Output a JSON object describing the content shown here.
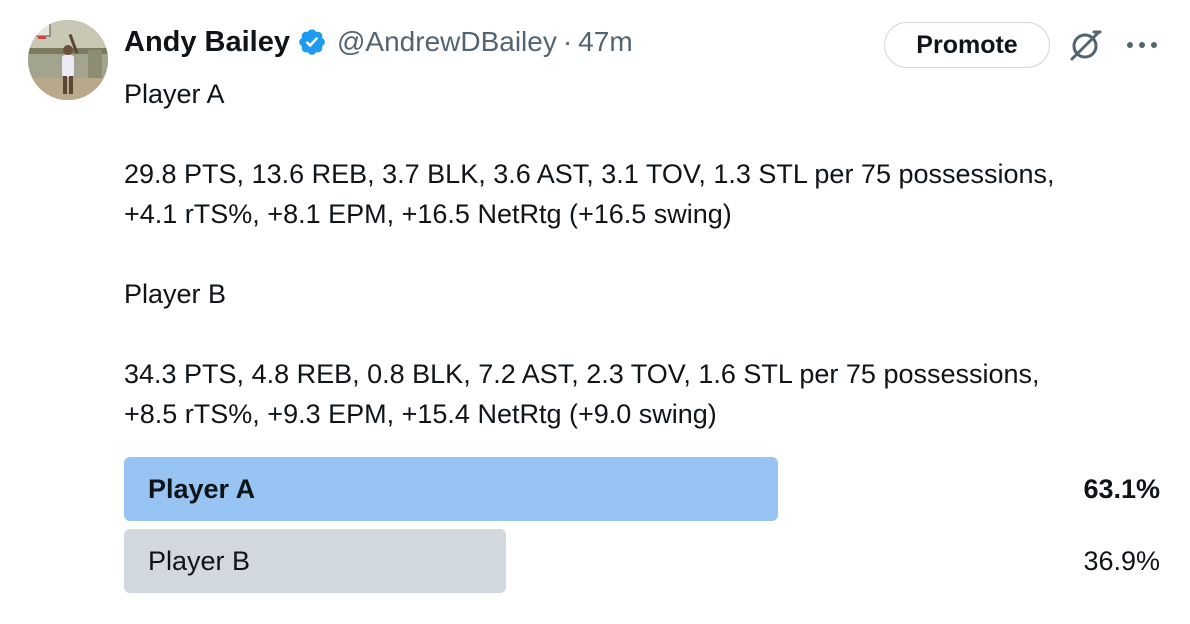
{
  "author": {
    "name": "Andy Bailey",
    "handle": "@AndrewDBailey",
    "separator": "·",
    "time": "47m"
  },
  "actions": {
    "promote_label": "Promote",
    "icons": [
      "grok-icon",
      "more-options-icon"
    ]
  },
  "tweet": {
    "lines": [
      "Player A",
      "",
      "29.8 PTS, 13.6 REB, 3.7 BLK, 3.6 AST, 3.1 TOV, 1.3 STL per 75 possessions,",
      "+4.1 rTS%, +8.1 EPM, +16.5 NetRtg (+16.5 swing)",
      "",
      "Player B",
      "",
      "34.3 PTS, 4.8 REB, 0.8 BLK, 7.2 AST, 2.3 TOV, 1.6 STL per 75 possessions,",
      "+8.5 rTS%, +9.3 EPM, +15.4 NetRtg (+9.0 swing)"
    ]
  },
  "poll": {
    "options": [
      {
        "label": "Player A",
        "percent_text": "63.1%",
        "percent": 63.1,
        "winner": true,
        "color": "#98c4f3"
      },
      {
        "label": "Player B",
        "percent_text": "36.9%",
        "percent": 36.9,
        "winner": false,
        "color": "#d1d8de"
      }
    ]
  },
  "colors": {
    "verified": "#1d9bf0",
    "text": "#0f1419",
    "secondary": "#536471"
  }
}
